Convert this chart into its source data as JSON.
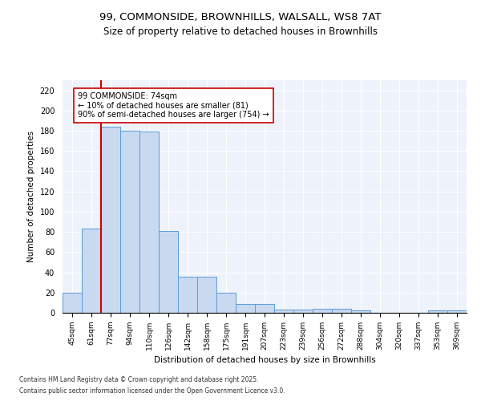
{
  "title_line1": "99, COMMONSIDE, BROWNHILLS, WALSALL, WS8 7AT",
  "title_line2": "Size of property relative to detached houses in Brownhills",
  "xlabel": "Distribution of detached houses by size in Brownhills",
  "ylabel": "Number of detached properties",
  "bar_color": "#c9d9f0",
  "bar_edge_color": "#5b9bd5",
  "background_color": "#eef2fb",
  "grid_color": "#ffffff",
  "categories": [
    "45sqm",
    "61sqm",
    "77sqm",
    "94sqm",
    "110sqm",
    "126sqm",
    "142sqm",
    "158sqm",
    "175sqm",
    "191sqm",
    "207sqm",
    "223sqm",
    "239sqm",
    "256sqm",
    "272sqm",
    "288sqm",
    "304sqm",
    "320sqm",
    "337sqm",
    "353sqm",
    "369sqm"
  ],
  "values": [
    20,
    83,
    184,
    180,
    179,
    81,
    36,
    36,
    20,
    9,
    9,
    3,
    3,
    4,
    4,
    2,
    0,
    0,
    0,
    2,
    2
  ],
  "ylim": [
    0,
    230
  ],
  "yticks": [
    0,
    20,
    40,
    60,
    80,
    100,
    120,
    140,
    160,
    180,
    200,
    220
  ],
  "property_label": "99 COMMONSIDE: 74sqm",
  "pct_smaller_label": "← 10% of detached houses are smaller (81)",
  "pct_larger_label": "90% of semi-detached houses are larger (754) →",
  "annotation_box_color": "#ffffff",
  "annotation_box_edge": "#cc0000",
  "vline_color": "#cc0000",
  "vline_x": 1.5,
  "footnote1": "Contains HM Land Registry data © Crown copyright and database right 2025.",
  "footnote2": "Contains public sector information licensed under the Open Government Licence v3.0."
}
